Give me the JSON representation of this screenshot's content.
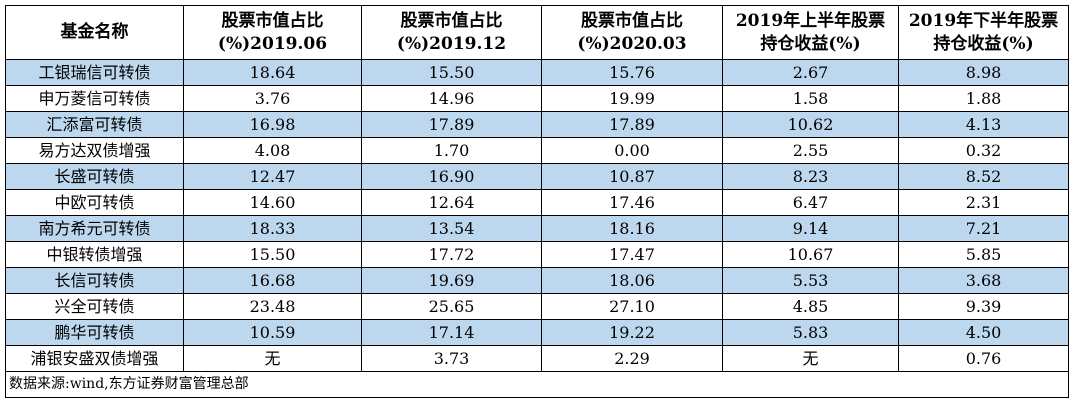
{
  "table": {
    "headers": [
      [
        "基金名称"
      ],
      [
        "股票市值占比",
        "(%)2019.06"
      ],
      [
        "股票市值占比",
        "(%)2019.12"
      ],
      [
        "股票市值占比",
        "(%)2020.03"
      ],
      [
        "2019年上半年股票",
        "持仓收益(%)"
      ],
      [
        "2019年下半年股票",
        "持仓收益(%)"
      ]
    ],
    "rows": [
      [
        "工银瑞信可转债",
        "18.64",
        "15.50",
        "15.76",
        "2.67",
        "8.98"
      ],
      [
        "申万菱信可转债",
        "3.76",
        "14.96",
        "19.99",
        "1.58",
        "1.88"
      ],
      [
        "汇添富可转债",
        "16.98",
        "17.89",
        "17.89",
        "10.62",
        "4.13"
      ],
      [
        "易方达双债增强",
        "4.08",
        "1.70",
        "0.00",
        "2.55",
        "0.32"
      ],
      [
        "长盛可转债",
        "12.47",
        "16.90",
        "10.87",
        "8.23",
        "8.52"
      ],
      [
        "中欧可转债",
        "14.60",
        "12.64",
        "17.46",
        "6.47",
        "2.31"
      ],
      [
        "南方希元可转债",
        "18.33",
        "13.54",
        "18.16",
        "9.14",
        "7.21"
      ],
      [
        "中银转债增强",
        "15.50",
        "17.72",
        "17.47",
        "10.67",
        "5.85"
      ],
      [
        "长信可转债",
        "16.68",
        "19.69",
        "18.06",
        "5.53",
        "3.68"
      ],
      [
        "兴全可转债",
        "23.48",
        "25.65",
        "27.10",
        "4.85",
        "9.39"
      ],
      [
        "鹏华可转债",
        "10.59",
        "17.14",
        "19.22",
        "5.83",
        "4.50"
      ],
      [
        "浦银安盛双债增强",
        "无",
        "3.73",
        "2.29",
        "无",
        "0.76"
      ]
    ],
    "source": "数据来源:wind,东方证券财富管理总部"
  },
  "colors": {
    "shaded_row": "#bdd7ee",
    "plain_row": "#ffffff",
    "border": "#000000"
  }
}
